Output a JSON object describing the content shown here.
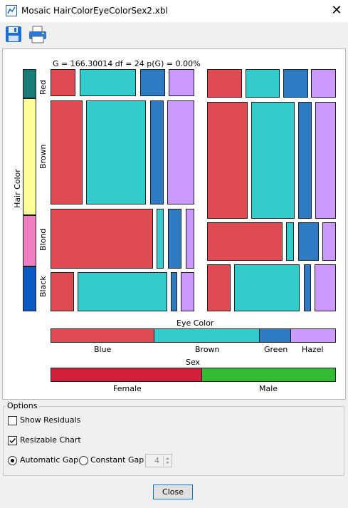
{
  "window": {
    "title": "Mosaic HairColorEyeColorSex2.xbl",
    "close_glyph": "✕"
  },
  "toolbar": {
    "save_icon": "save-icon",
    "print_icon": "print-icon"
  },
  "chart_data": {
    "type": "mosaic",
    "title": "G = 166.30014 df = 24 p(G) = 0.00%",
    "hair_axis_label": "Hair Color",
    "hair_levels": [
      "Red",
      "Brown",
      "Blond",
      "Black"
    ],
    "eye_axis_label": "Eye Color",
    "eye_levels": [
      "Blue",
      "Brown",
      "Green",
      "Hazel"
    ],
    "sex_axis_label": "Sex",
    "sex_levels": [
      "Female",
      "Male"
    ],
    "colors": {
      "hair": {
        "Red": "#1b7b77",
        "Brown": "#ffff99",
        "Blond": "#ef7fc0",
        "Black": "#0b5bc4"
      },
      "eye": {
        "Blue": "#e04b52",
        "Brown": "#33cccc",
        "Green": "#2e7bc4",
        "Hazel": "#cc99ff"
      },
      "sex": {
        "Female": "#d41f3c",
        "Male": "#33bb33"
      }
    },
    "eye_marginal_proportions": [
      0.363,
      0.372,
      0.109,
      0.157
    ],
    "sex_marginal_proportions": [
      0.53,
      0.47
    ],
    "hair_marginal_proportions": [
      0.12,
      0.48,
      0.21,
      0.19
    ]
  },
  "options": {
    "legend": "Options",
    "show_residuals": {
      "label": "Show Residuals",
      "checked": false
    },
    "resizable_chart": {
      "label": "Resizable Chart",
      "checked": true
    },
    "automatic_gap": {
      "label": "Automatic Gap",
      "selected": true
    },
    "constant_gap": {
      "label": "Constant Gap",
      "selected": false
    },
    "gap_value": "4"
  },
  "footer": {
    "close_label": "Close"
  }
}
